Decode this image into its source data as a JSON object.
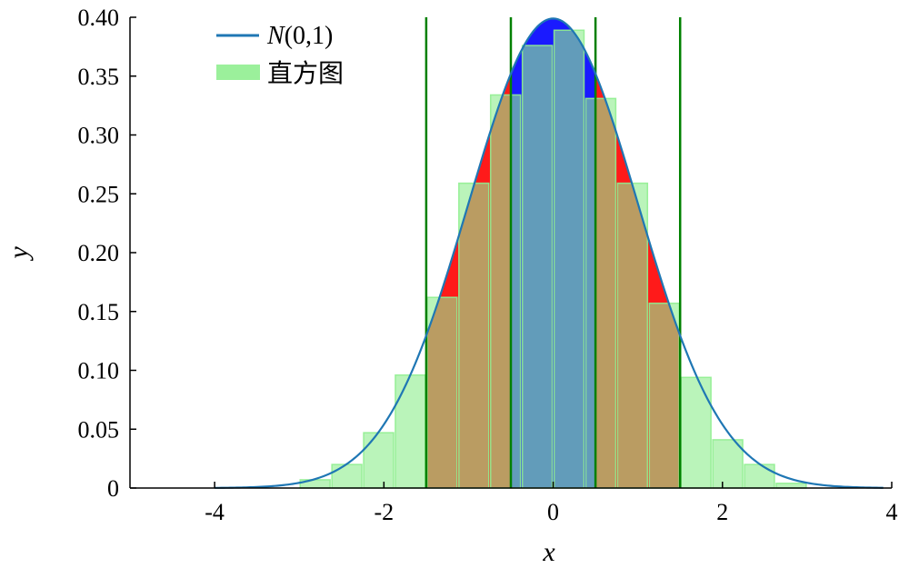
{
  "chart_data": {
    "type": "bar",
    "xlabel": "x",
    "ylabel": "y",
    "xlim": [
      -5,
      4
    ],
    "ylim": [
      0,
      0.4
    ],
    "xticks": [
      "-4",
      "-2",
      "0",
      "2",
      "4"
    ],
    "yticks": [
      "0",
      "0.05",
      "0.10",
      "0.15",
      "0.20",
      "0.25",
      "0.30",
      "0.35",
      "0.40"
    ],
    "legend": {
      "position": "top-left",
      "entries": [
        {
          "label_prefix": "N",
          "label_suffix": "(0,1)",
          "color": "#1f77b4",
          "kind": "line"
        },
        {
          "label": "直方图",
          "color": "#90ee90",
          "kind": "patch"
        }
      ]
    },
    "curve": {
      "name": "N(0,1)",
      "color": "#1f77b4",
      "x_range": [
        -4,
        3.9
      ],
      "function": "normal_pdf"
    },
    "shaded_regions": [
      {
        "from": -1.5,
        "to": 1.5,
        "color": "#ff1a1a"
      },
      {
        "from": -0.5,
        "to": 0.5,
        "color": "#1a1aff"
      }
    ],
    "vertical_lines": [
      -1.5,
      -0.5,
      0.5,
      1.5
    ],
    "vertical_line_color": "#008000",
    "histogram": {
      "color": "#90ee90",
      "bin_width": 0.375,
      "bins": [
        {
          "left": -3.0,
          "value": 0.007
        },
        {
          "left": -2.625,
          "value": 0.02
        },
        {
          "left": -2.25,
          "value": 0.047
        },
        {
          "left": -1.875,
          "value": 0.096
        },
        {
          "left": -1.5,
          "value": 0.162
        },
        {
          "left": -1.125,
          "value": 0.259
        },
        {
          "left": -0.75,
          "value": 0.334
        },
        {
          "left": -0.375,
          "value": 0.376
        },
        {
          "left": 0.0,
          "value": 0.389
        },
        {
          "left": 0.375,
          "value": 0.331
        },
        {
          "left": 0.75,
          "value": 0.259
        },
        {
          "left": 1.125,
          "value": 0.157
        },
        {
          "left": 1.5,
          "value": 0.094
        },
        {
          "left": 1.875,
          "value": 0.041
        },
        {
          "left": 2.25,
          "value": 0.02
        },
        {
          "left": 2.625,
          "value": 0.004
        }
      ]
    }
  }
}
